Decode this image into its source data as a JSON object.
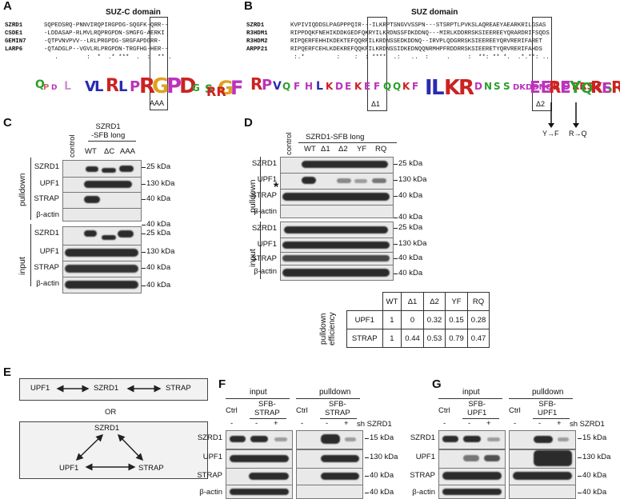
{
  "panels": {
    "A": "A",
    "B": "B",
    "C": "C",
    "D": "D",
    "E": "E",
    "F": "F",
    "G": "G"
  },
  "panelA": {
    "title": "SUZ-C domain",
    "rows": [
      {
        "name": "SZRD1",
        "seq": "SQPEDSRQ-PNNVIRQPIRGPDG-SQGFK-QRR--"
      },
      {
        "name": "CSDE1",
        "seq": "-LDDASAP-RLMVLRQPRGPDN-SMGFG-AERKI"
      },
      {
        "name": "GEMIN7",
        "seq": "-QTPVNVPVV--LRLPRGPDG-SRGFAPDGRR-"
      },
      {
        "name": "LARP6",
        "seq": "-QTADGLP--VGVLRLPRGPDN-TRGFHG-HER--"
      }
    ],
    "consensus": "   .        :  *  .* ***  .  :  ** .",
    "box_label": "AAA"
  },
  "panelB": {
    "title": "SUZ domain",
    "rows": [
      {
        "name": "SZRD1",
        "seq": "KVPIVIQDDSLPAGPPPQIR---ILKRPTSNGVVSSPN---STSRPTLPVKSLAQREAEYAEARKRILGSAS"
      },
      {
        "name": "R3HDM1",
        "seq": "RIPPDQKFNEHIKDDKGEDFQKRYILKRDNSSFDKDDNQ---MIRLKDDRRSKSIEEREEYQRARDRIFSQDS"
      },
      {
        "name": "R3HDM2",
        "seq": "RIPQERFEHHIKDEKTEFQQRFILKRDNSSEDKDDNQ--IRVPLQDGRRSKSIEEREEYQRVRERIFARET"
      },
      {
        "name": "ARPP21",
        "seq": "RIPQERFCEHLKDEKREFQQKFILKRDNSSIDKEDNQQNRMHPFRDDRRSKSIEERETYQRVRERIFAHDS"
      }
    ],
    "consensus": " :.*         :    :  : ****  .:   ..  :     .     :  **: ** *.  .*.**: ..",
    "box1_label": "Δ1",
    "box2_label": "Δ2",
    "mut1": "Y→F",
    "mut2": "R→Q"
  },
  "panelC": {
    "header": "SZRD1\n-SFB long",
    "lanes": [
      "control",
      "WT",
      "ΔC",
      "AAA"
    ],
    "group_pulldown": "pulldown",
    "group_input": "input",
    "pulldown_rows": [
      "SZRD1",
      "UPF1",
      "STRAP",
      "β-actin"
    ],
    "input_rows": [
      "SZRD1",
      "UPF1",
      "STRAP",
      "β-actin"
    ],
    "pulldown_kda": [
      "25 kDa",
      "130 kDa",
      "40 kDa",
      "40 kDa"
    ],
    "input_kda": [
      "25 kDa",
      "130 kDa",
      "40 kDa",
      "40 kDa"
    ]
  },
  "panelD": {
    "header": "SZRD1-SFB long",
    "lanes": [
      "control",
      "WT",
      "Δ1",
      "Δ2",
      "YF",
      "RQ"
    ],
    "group_pulldown": "pulldown",
    "group_input": "input",
    "pulldown_rows": [
      "SZRD1",
      "UPF1",
      "STRAP",
      "β-actin"
    ],
    "input_rows": [
      "SZRD1",
      "UPF1",
      "STRAP",
      "β-actin"
    ],
    "pulldown_kda": [
      "25 kDa",
      "130 kDa",
      "40 kDa",
      "40 kDa"
    ],
    "input_kda": [
      "25 kDa",
      "130 kDa",
      "40 kDa",
      "40 kDa"
    ],
    "asterisk": "*",
    "efficiency": {
      "ylabel": "pulldown\nefficiency",
      "columns": [
        "WT",
        "Δ1",
        "Δ2",
        "YF",
        "RQ"
      ],
      "rows": [
        {
          "label": "UPF1",
          "values": [
            "1",
            "0",
            "0.32",
            "0.15",
            "0.28"
          ]
        },
        {
          "label": "STRAP",
          "values": [
            "1",
            "0.44",
            "0.53",
            "0.79",
            "0.47"
          ]
        }
      ]
    }
  },
  "panelE": {
    "top": [
      "UPF1",
      "SZRD1",
      "STRAP"
    ],
    "or": "OR",
    "bottom": [
      "SZRD1",
      "UPF1",
      "STRAP"
    ]
  },
  "panelF": {
    "input": "input",
    "pulldown": "pulldown",
    "ctrl": "Ctrl",
    "sfb": "SFB-\nSTRAP",
    "sign_rows": [
      "-",
      "-",
      "+",
      "-",
      "-",
      "+"
    ],
    "sh": "sh SZRD1",
    "rows": [
      "SZRD1",
      "UPF1",
      "STRAP",
      "β-actin"
    ],
    "kda": [
      "15 kDa",
      "130 kDa",
      "40 kDa",
      "40 kDa"
    ]
  },
  "panelG": {
    "input": "input",
    "pulldown": "pulldown",
    "ctrl": "Ctrl",
    "sfb": "SFB-\nUPF1",
    "sign_rows": [
      "-",
      "-",
      "+",
      "-",
      "-",
      "+"
    ],
    "sh": "sh SZRD1",
    "rows": [
      "SZRD1",
      "UPF1",
      "STRAP",
      "β-actin"
    ],
    "kda": [
      "15 kDa",
      "130 kDa",
      "40 kDa",
      "40 kDa"
    ]
  }
}
